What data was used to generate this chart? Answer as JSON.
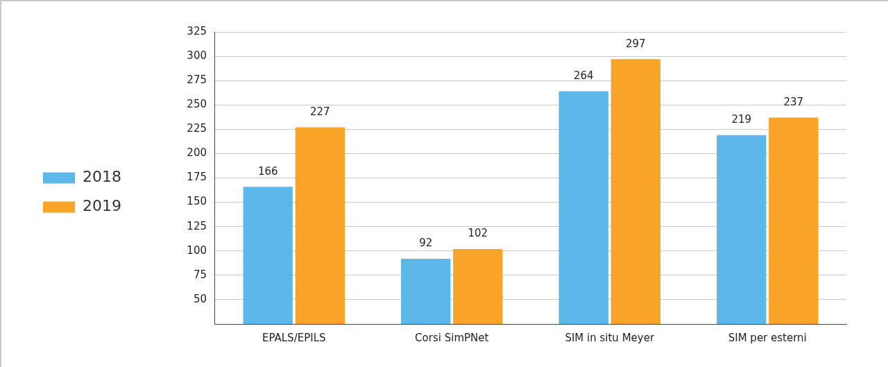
{
  "chart_data": {
    "type": "bar",
    "categories": [
      "EPALS/EPILS",
      "Corsi SimPNet",
      "SIM in situ Meyer",
      "SIM per esterni"
    ],
    "series": [
      {
        "name": "2018",
        "color": "#5bb8e8",
        "values": [
          166,
          92,
          264,
          219
        ]
      },
      {
        "name": "2019",
        "color": "#f7a428",
        "values": [
          227,
          102,
          297,
          237
        ]
      }
    ],
    "ylim": [
      25,
      325
    ],
    "yticks": [
      {
        "value": 25,
        "label": null
      },
      50,
      75,
      100,
      125,
      150,
      175,
      200,
      225,
      250,
      275,
      300,
      325
    ],
    "grid": "y",
    "legend": "left",
    "data_labels": true
  }
}
